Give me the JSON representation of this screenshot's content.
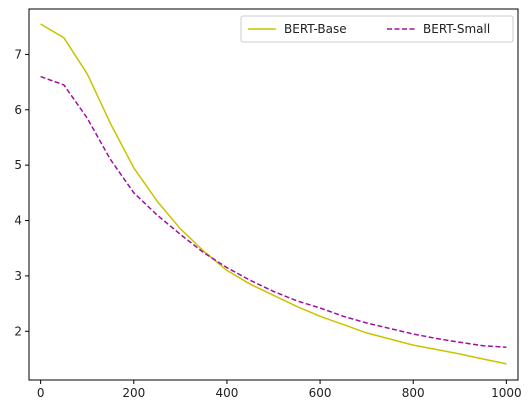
{
  "chart_data": {
    "type": "line",
    "title": "",
    "xlabel": "",
    "ylabel": "",
    "xlim": [
      -25,
      1025
    ],
    "ylim": [
      1.12,
      7.82
    ],
    "xticks": [
      0,
      200,
      400,
      600,
      800,
      1000
    ],
    "yticks": [
      2,
      3,
      4,
      5,
      6,
      7
    ],
    "grid": false,
    "legend": "top-right",
    "series": [
      {
        "name": "BERT-Base",
        "color": "#c8c400",
        "dash": "solid",
        "x": [
          0,
          50,
          100,
          150,
          200,
          250,
          300,
          350,
          400,
          450,
          500,
          550,
          600,
          650,
          700,
          750,
          800,
          850,
          900,
          950,
          1000
        ],
        "y": [
          7.55,
          7.3,
          6.65,
          5.75,
          4.95,
          4.35,
          3.85,
          3.45,
          3.1,
          2.85,
          2.65,
          2.45,
          2.27,
          2.12,
          1.97,
          1.86,
          1.75,
          1.67,
          1.59,
          1.5,
          1.41
        ]
      },
      {
        "name": "BERT-Small",
        "color": "#a0109f",
        "dash": "dashed",
        "x": [
          0,
          50,
          100,
          150,
          200,
          250,
          300,
          350,
          400,
          450,
          500,
          550,
          600,
          650,
          700,
          750,
          800,
          850,
          900,
          950,
          1000
        ],
        "y": [
          6.6,
          6.45,
          5.85,
          5.1,
          4.5,
          4.1,
          3.75,
          3.42,
          3.15,
          2.92,
          2.72,
          2.55,
          2.42,
          2.27,
          2.15,
          2.05,
          1.95,
          1.87,
          1.8,
          1.74,
          1.71
        ]
      }
    ]
  }
}
